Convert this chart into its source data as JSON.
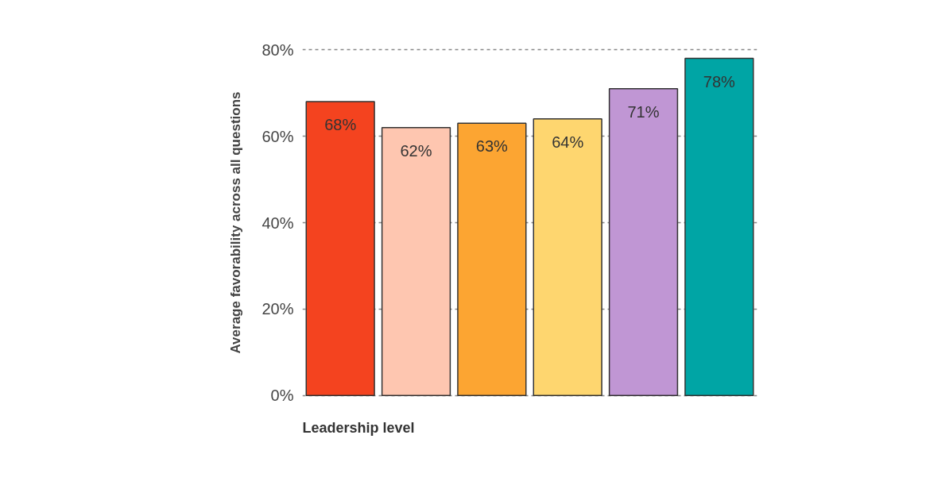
{
  "chart_data": {
    "type": "bar",
    "xlabel": "Leadership level",
    "ylabel": "Average favorability across all questions",
    "categories": [
      null,
      null,
      null,
      null,
      null,
      null
    ],
    "values": [
      68,
      62,
      63,
      64,
      71,
      78
    ],
    "colors": [
      "#f4431f",
      "#fec6b0",
      "#fca532",
      "#fed66f",
      "#c096d4",
      "#00a5a5"
    ],
    "ylim": [
      0,
      80
    ],
    "yticks": [
      {
        "value": 0,
        "label": "0%"
      },
      {
        "value": 20,
        "label": "20%"
      },
      {
        "value": 40,
        "label": "40%"
      },
      {
        "value": 60,
        "label": "60%"
      },
      {
        "value": 80,
        "label": "80%"
      }
    ],
    "grid": "y",
    "data_labels": true,
    "value_labels": [
      "68%",
      "62%",
      "63%",
      "64%",
      "71%",
      "78%"
    ]
  }
}
